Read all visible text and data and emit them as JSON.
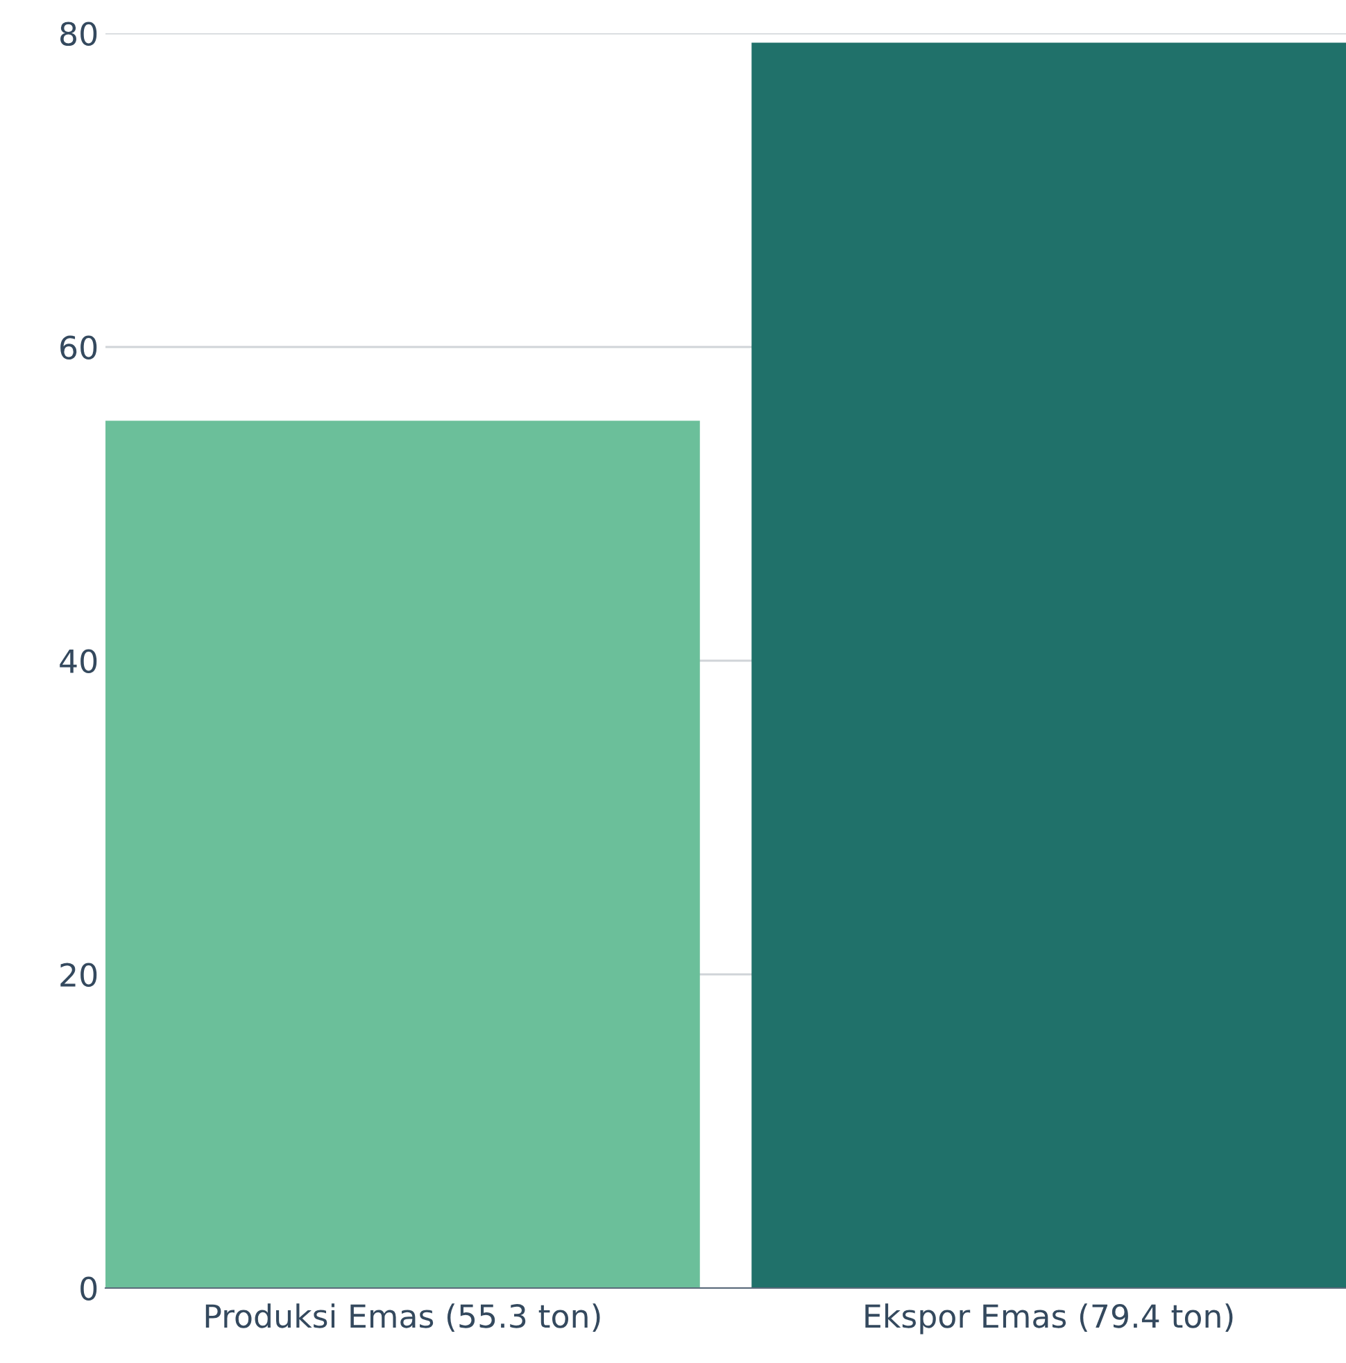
{
  "chart_data": {
    "type": "bar",
    "categories": [
      "Produksi Emas (55.3 ton)",
      "Ekspor Emas (79.4 ton)"
    ],
    "values": [
      55.3,
      79.4
    ],
    "colors": [
      "#6bbf9a",
      "#20716a"
    ],
    "ylim": [
      0,
      80
    ],
    "yticks": [
      0,
      20,
      40,
      60,
      80
    ],
    "grid": "y"
  }
}
